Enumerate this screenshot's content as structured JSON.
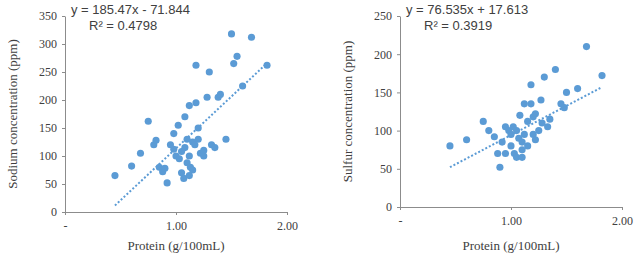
{
  "chart_data": [
    {
      "type": "scatter",
      "x_label": "Protein (g/100mL)",
      "y_label": "Sodium concentration (ppm)",
      "x": [
        0.45,
        0.6,
        0.68,
        0.75,
        0.8,
        0.82,
        0.85,
        0.88,
        0.9,
        0.92,
        0.95,
        0.98,
        1.0,
        1.02,
        1.03,
        1.05,
        1.05,
        1.07,
        1.08,
        1.08,
        1.1,
        1.1,
        1.12,
        1.12,
        1.13,
        1.15,
        1.15,
        1.17,
        1.18,
        1.18,
        1.2,
        1.2,
        1.22,
        1.25,
        1.28,
        1.3,
        1.32,
        1.38,
        1.4,
        1.45,
        1.5,
        1.52,
        1.55,
        1.6,
        1.68,
        1.82,
        0.98,
        1.12,
        1.25,
        1.35
      ],
      "values": [
        65,
        82,
        105,
        162,
        120,
        128,
        80,
        72,
        78,
        52,
        120,
        112,
        100,
        155,
        95,
        108,
        70,
        60,
        115,
        170,
        130,
        88,
        190,
        100,
        80,
        75,
        125,
        120,
        195,
        262,
        150,
        130,
        105,
        100,
        205,
        250,
        120,
        205,
        210,
        130,
        318,
        265,
        278,
        225,
        312,
        262,
        140,
        65,
        110,
        115
      ],
      "color": "#5b9bd5",
      "marker": "circle",
      "xlim": [
        0,
        2
      ],
      "xticks": [
        {
          "value": 0,
          "label": "-"
        },
        {
          "value": 1,
          "label": "1.00"
        },
        {
          "value": 2,
          "label": "2.00"
        }
      ],
      "ylim": [
        0,
        350
      ],
      "yticks": [
        0,
        50,
        100,
        150,
        200,
        250,
        300,
        350
      ],
      "grid": false,
      "trendline": {
        "slope": 185.47,
        "intercept": -71.844,
        "line_style": "dotted"
      },
      "annotations": [
        "y = 185.47x - 71.844",
        "R² = 0.4798"
      ]
    },
    {
      "type": "scatter",
      "x_label": "Protein (g/100mL)",
      "y_label": "Sulfur concentration (ppm)",
      "x": [
        0.45,
        0.6,
        0.75,
        0.8,
        0.85,
        0.88,
        0.9,
        0.92,
        0.95,
        0.98,
        1.0,
        1.02,
        1.03,
        1.05,
        1.05,
        1.07,
        1.08,
        1.1,
        1.1,
        1.12,
        1.12,
        1.15,
        1.15,
        1.18,
        1.18,
        1.2,
        1.2,
        1.22,
        1.25,
        1.28,
        1.3,
        1.33,
        1.35,
        1.4,
        1.45,
        1.48,
        1.5,
        1.6,
        1.68,
        1.82,
        1.0,
        1.1,
        1.22,
        1.27,
        0.95
      ],
      "values": [
        80,
        88,
        112,
        100,
        92,
        70,
        52,
        85,
        105,
        100,
        80,
        105,
        70,
        65,
        100,
        90,
        120,
        85,
        65,
        135,
        95,
        112,
        80,
        135,
        160,
        118,
        95,
        122,
        100,
        110,
        170,
        105,
        115,
        180,
        135,
        130,
        150,
        155,
        210,
        172,
        95,
        75,
        88,
        140,
        70
      ],
      "color": "#5b9bd5",
      "marker": "circle",
      "xlim": [
        0,
        2
      ],
      "xticks": [
        {
          "value": 0,
          "label": "-"
        },
        {
          "value": 1,
          "label": "1.00"
        },
        {
          "value": 2,
          "label": "2.00"
        }
      ],
      "ylim": [
        0,
        250
      ],
      "yticks": [
        0,
        50,
        100,
        150,
        200,
        250
      ],
      "grid": false,
      "trendline": {
        "slope": 76.535,
        "intercept": 17.613,
        "line_style": "dotted"
      },
      "annotations": [
        "y = 76.535x + 17.613",
        "R² = 0.3919"
      ]
    }
  ]
}
